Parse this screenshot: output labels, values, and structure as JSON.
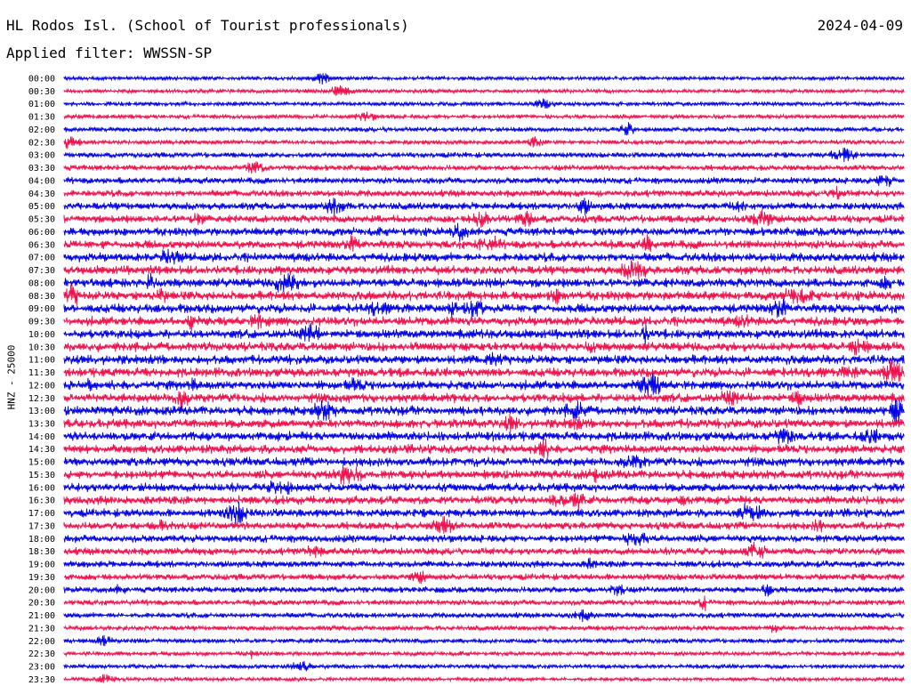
{
  "header": {
    "station": "HL Rodos Isl. (School of Tourist professionals)",
    "date": "2024-04-09",
    "filter_line": "Applied filter: WWSSN-SP",
    "y_axis_label": "HNZ - 25000"
  },
  "chart_data": {
    "type": "line",
    "title": "HL Rodos Isl. (School of Tourist professionals)",
    "date": "2024-04-09",
    "filter": "WWSSN-SP",
    "channel_label": "HNZ - 25000",
    "row_interval_minutes": 30,
    "row_labels": [
      "00:00",
      "00:30",
      "01:00",
      "01:30",
      "02:00",
      "02:30",
      "03:00",
      "03:30",
      "04:00",
      "04:30",
      "05:00",
      "05:30",
      "06:00",
      "06:30",
      "07:00",
      "07:30",
      "08:00",
      "08:30",
      "09:00",
      "09:30",
      "10:00",
      "10:30",
      "11:00",
      "11:30",
      "12:00",
      "12:30",
      "13:00",
      "13:30",
      "14:00",
      "14:30",
      "15:00",
      "15:30",
      "16:00",
      "16:30",
      "17:00",
      "17:30",
      "18:00",
      "18:30",
      "19:00",
      "19:30",
      "20:00",
      "20:30",
      "21:00",
      "21:30",
      "22:00",
      "22:30",
      "23:00",
      "23:30"
    ],
    "series_colors": [
      "#0000e6",
      "#f0104c"
    ],
    "relative_noise_level": [
      0.25,
      0.25,
      0.3,
      0.3,
      0.35,
      0.35,
      0.45,
      0.5,
      0.6,
      0.65,
      0.75,
      0.8,
      0.85,
      0.9,
      0.95,
      0.95,
      1.0,
      1.0,
      1.0,
      1.0,
      1.0,
      1.0,
      1.0,
      1.0,
      1.0,
      1.0,
      1.0,
      1.0,
      1.0,
      0.95,
      0.95,
      0.95,
      0.9,
      0.9,
      0.85,
      0.8,
      0.75,
      0.7,
      0.65,
      0.6,
      0.55,
      0.5,
      0.45,
      0.4,
      0.35,
      0.3,
      0.3,
      0.25
    ]
  }
}
